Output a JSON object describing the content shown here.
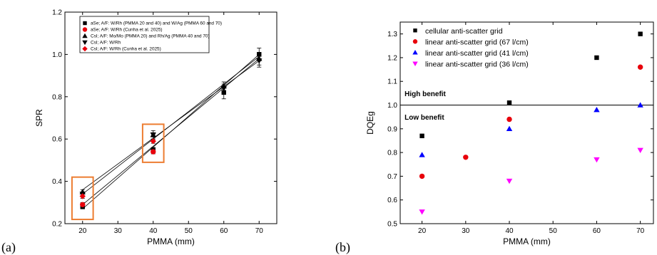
{
  "panels": {
    "a": "(a)",
    "b": "(b)"
  },
  "chart_data": [
    {
      "type": "scatter",
      "xlabel": "PMMA (mm)",
      "ylabel": "SPR",
      "xlim": [
        15,
        75
      ],
      "ylim": [
        0.2,
        1.2
      ],
      "xticks": [
        20,
        30,
        40,
        50,
        60,
        70
      ],
      "yticks": [
        0.2,
        0.4,
        0.6,
        0.8,
        1.0,
        1.2
      ],
      "x_tick_labels": [
        "20",
        "30",
        "40",
        "50",
        "60",
        "70"
      ],
      "y_tick_labels": [
        "0.2",
        "0.4",
        "0.6",
        "0.8",
        "1.0",
        "1.2"
      ],
      "grid": false,
      "legend_position": "top-left",
      "series": [
        {
          "name": "aSe; A/F: W/Rh (PMMA 20 and 40) and W/Ag (PMMA 60 and 70)",
          "marker": "square",
          "color": "#000000",
          "x": [
            20,
            40,
            60,
            70
          ],
          "y": [
            0.28,
            0.55,
            0.82,
            1.0
          ],
          "err": [
            0.01,
            0.01,
            0.03,
            0.03
          ]
        },
        {
          "name": "aSe; A/F: W/Rh  (Cunha et al. 2025)",
          "marker": "circle",
          "color": "#e8000b",
          "x": [
            20,
            40
          ],
          "y": [
            0.29,
            0.54
          ],
          "err": [
            0.01,
            0.01
          ]
        },
        {
          "name": "CsI; A/F: Mo/Mo (PMMA 20) and Rh/Ag (PMMA 40 and 70)",
          "marker": "triangle-up",
          "color": "#000000",
          "x": [
            20,
            40,
            60,
            70
          ],
          "y": [
            0.35,
            0.62,
            0.85,
            0.98
          ],
          "err": [
            0.01,
            0.02,
            0.02,
            0.03
          ]
        },
        {
          "name": "CsI; A/F: W/Rh",
          "marker": "triangle-down",
          "color": "#000000",
          "x": [
            20,
            40,
            60,
            70
          ],
          "y": [
            0.34,
            0.62,
            0.84,
            0.97
          ],
          "err": [
            0.01,
            0.01,
            0.02,
            0.03
          ]
        },
        {
          "name": "CsI; A/F: W/Rh (Cunha et al. 2025)",
          "marker": "diamond",
          "color": "#e8000b",
          "x": [
            20,
            40
          ],
          "y": [
            0.33,
            0.59
          ],
          "err": [
            0.01,
            0.01
          ]
        }
      ],
      "fit_lines": [
        {
          "x": [
            20,
            70
          ],
          "y": [
            0.27,
            1.0
          ]
        },
        {
          "x": [
            20,
            70
          ],
          "y": [
            0.29,
            0.98
          ]
        },
        {
          "x": [
            20,
            70
          ],
          "y": [
            0.34,
            0.99
          ]
        },
        {
          "x": [
            20,
            70
          ],
          "y": [
            0.36,
            0.97
          ]
        }
      ],
      "highlight_boxes": [
        {
          "x": [
            17,
            23
          ],
          "y": [
            0.22,
            0.42
          ]
        },
        {
          "x": [
            37,
            43
          ],
          "y": [
            0.49,
            0.67
          ]
        }
      ]
    },
    {
      "type": "scatter",
      "xlabel": "PMMA (mm)",
      "ylabel": "DQEg",
      "xlim": [
        15,
        73
      ],
      "ylim": [
        0.5,
        1.35
      ],
      "xticks": [
        20,
        30,
        40,
        50,
        60,
        70
      ],
      "yticks": [
        0.5,
        0.6,
        0.7,
        0.8,
        0.9,
        1.0,
        1.1,
        1.2,
        1.3
      ],
      "x_tick_labels": [
        "20",
        "30",
        "40",
        "50",
        "60",
        "70"
      ],
      "y_tick_labels": [
        "0.5",
        "0.6",
        "0.7",
        "0.8",
        "0.9",
        "1.0",
        "1.1",
        "1.2",
        "1.3"
      ],
      "grid": false,
      "legend_position": "top-left",
      "reference_line": {
        "y": 1.0
      },
      "annotations": [
        {
          "text": "High benefit",
          "x": 16,
          "y": 1.05
        },
        {
          "text": "Low benefit",
          "x": 16,
          "y": 0.95
        }
      ],
      "series": [
        {
          "name": "cellular anti-scatter grid",
          "marker": "square",
          "color": "#000000",
          "x": [
            20,
            40,
            60,
            70
          ],
          "y": [
            0.87,
            1.01,
            1.2,
            1.3
          ]
        },
        {
          "name": "linear anti-scatter grid (67 l/cm)",
          "marker": "circle",
          "color": "#e8000b",
          "x": [
            20,
            30,
            40,
            70
          ],
          "y": [
            0.7,
            0.78,
            0.94,
            1.16
          ]
        },
        {
          "name": "linear anti-scatter grid (41 l/cm)",
          "marker": "triangle-up",
          "color": "#0000ff",
          "x": [
            20,
            40,
            60,
            70
          ],
          "y": [
            0.79,
            0.9,
            0.98,
            1.0
          ]
        },
        {
          "name": "linear anti-scatter grid (36 l/cm)",
          "marker": "triangle-down",
          "color": "#ff00ff",
          "x": [
            20,
            40,
            60,
            70
          ],
          "y": [
            0.55,
            0.68,
            0.77,
            0.81
          ]
        }
      ]
    }
  ]
}
